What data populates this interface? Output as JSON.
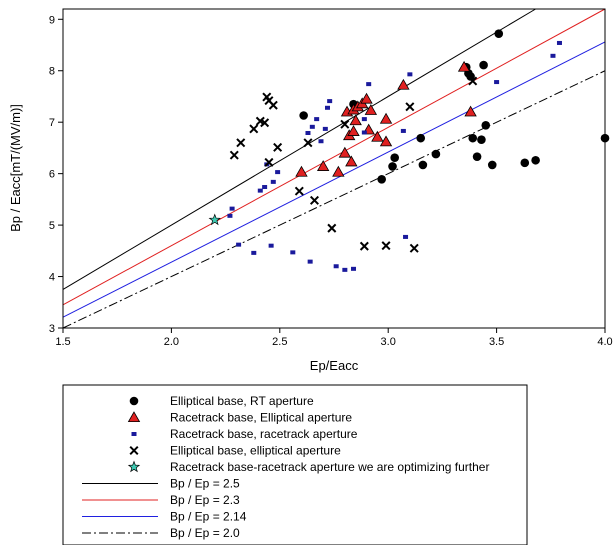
{
  "chart_data": {
    "type": "scatter",
    "xlabel": "Ep/Eacc",
    "ylabel": "Bp / Eacc[mT/(MV/m)]",
    "xlim": [
      1.5,
      4.0
    ],
    "ylim": [
      3,
      9.2
    ],
    "x_ticks": [
      "1.5",
      "2.0",
      "2.5",
      "3.0",
      "3.5",
      "4.0"
    ],
    "y_ticks": [
      "3",
      "4",
      "5",
      "6",
      "7",
      "8",
      "9"
    ],
    "grid": false,
    "legend_position": "below-plot",
    "series": [
      {
        "name": "Elliptical base, RT aperture",
        "marker": "circle",
        "color": "#000000",
        "points": [
          [
            2.61,
            7.13
          ],
          [
            2.84,
            7.35
          ],
          [
            2.97,
            5.89
          ],
          [
            3.02,
            6.14
          ],
          [
            3.03,
            6.31
          ],
          [
            3.15,
            6.69
          ],
          [
            3.16,
            6.17
          ],
          [
            3.22,
            6.38
          ],
          [
            3.36,
            8.07
          ],
          [
            3.37,
            7.95
          ],
          [
            3.38,
            7.89
          ],
          [
            3.39,
            6.69
          ],
          [
            3.41,
            6.33
          ],
          [
            3.43,
            6.66
          ],
          [
            3.44,
            8.11
          ],
          [
            3.45,
            6.94
          ],
          [
            3.48,
            6.17
          ],
          [
            3.51,
            8.72
          ],
          [
            3.63,
            6.21
          ],
          [
            3.68,
            6.26
          ],
          [
            4.0,
            6.69
          ]
        ]
      },
      {
        "name": "Racetrack base, Elliptical aperture",
        "marker": "triangle",
        "color": "#e02020",
        "points": [
          [
            2.6,
            6.03
          ],
          [
            2.7,
            6.14
          ],
          [
            2.77,
            6.03
          ],
          [
            2.8,
            6.4
          ],
          [
            2.81,
            7.2
          ],
          [
            2.82,
            6.74
          ],
          [
            2.83,
            6.23
          ],
          [
            2.84,
            6.82
          ],
          [
            2.84,
            7.24
          ],
          [
            2.85,
            7.03
          ],
          [
            2.86,
            7.3
          ],
          [
            2.88,
            7.36
          ],
          [
            2.9,
            7.45
          ],
          [
            2.91,
            6.85
          ],
          [
            2.92,
            7.23
          ],
          [
            2.95,
            6.71
          ],
          [
            2.99,
            6.62
          ],
          [
            2.99,
            7.06
          ],
          [
            3.07,
            7.72
          ],
          [
            3.35,
            8.07
          ],
          [
            3.38,
            7.2
          ]
        ]
      },
      {
        "name": "Racetrack base, racetrack aperture",
        "marker": "square",
        "color": "#1a1a9c",
        "points": [
          [
            2.27,
            5.18
          ],
          [
            2.28,
            5.32
          ],
          [
            2.31,
            4.62
          ],
          [
            2.38,
            4.46
          ],
          [
            2.41,
            5.67
          ],
          [
            2.43,
            5.74
          ],
          [
            2.44,
            6.18
          ],
          [
            2.46,
            4.6
          ],
          [
            2.47,
            5.84
          ],
          [
            2.49,
            6.03
          ],
          [
            2.56,
            4.47
          ],
          [
            2.63,
            6.79
          ],
          [
            2.64,
            4.29
          ],
          [
            2.65,
            6.91
          ],
          [
            2.67,
            7.06
          ],
          [
            2.69,
            6.63
          ],
          [
            2.71,
            6.87
          ],
          [
            2.72,
            7.28
          ],
          [
            2.73,
            7.41
          ],
          [
            2.76,
            4.2
          ],
          [
            2.8,
            4.13
          ],
          [
            2.84,
            4.15
          ],
          [
            2.89,
            7.06
          ],
          [
            2.89,
            6.8
          ],
          [
            2.91,
            7.74
          ],
          [
            3.07,
            6.83
          ],
          [
            3.08,
            4.77
          ],
          [
            3.1,
            7.93
          ],
          [
            3.5,
            7.78
          ],
          [
            3.76,
            8.29
          ],
          [
            3.79,
            8.54
          ]
        ]
      },
      {
        "name": "Elliptical base, elliptical aperture",
        "marker": "x",
        "color": "#000000",
        "points": [
          [
            2.29,
            6.36
          ],
          [
            2.32,
            6.6
          ],
          [
            2.38,
            6.87
          ],
          [
            2.41,
            7.02
          ],
          [
            2.43,
            6.99
          ],
          [
            2.44,
            7.49
          ],
          [
            2.45,
            7.42
          ],
          [
            2.45,
            6.22
          ],
          [
            2.47,
            7.33
          ],
          [
            2.49,
            6.51
          ],
          [
            2.59,
            5.66
          ],
          [
            2.63,
            6.6
          ],
          [
            2.66,
            5.48
          ],
          [
            2.74,
            4.94
          ],
          [
            2.8,
            6.96
          ],
          [
            2.89,
            4.59
          ],
          [
            2.99,
            4.6
          ],
          [
            3.1,
            7.3
          ],
          [
            3.12,
            4.55
          ],
          [
            3.39,
            7.8
          ]
        ]
      },
      {
        "name": "Racetrack base-racetrack aperture we are optimizing further",
        "marker": "star",
        "color": "#3ec9b2",
        "points": [
          [
            2.2,
            5.1
          ]
        ]
      }
    ],
    "lines": [
      {
        "name": "Bp / Ep = 2.5",
        "slope": 2.5,
        "color": "#000000",
        "dash": "solid"
      },
      {
        "name": "Bp / Ep = 2.3",
        "slope": 2.3,
        "color": "#e02020",
        "dash": "solid"
      },
      {
        "name": "Bp / Ep = 2.14",
        "slope": 2.14,
        "color": "#2020e0",
        "dash": "solid"
      },
      {
        "name": "Bp / Ep = 2.0",
        "slope": 2.0,
        "color": "#000000",
        "dash": "dash-dot"
      }
    ]
  }
}
